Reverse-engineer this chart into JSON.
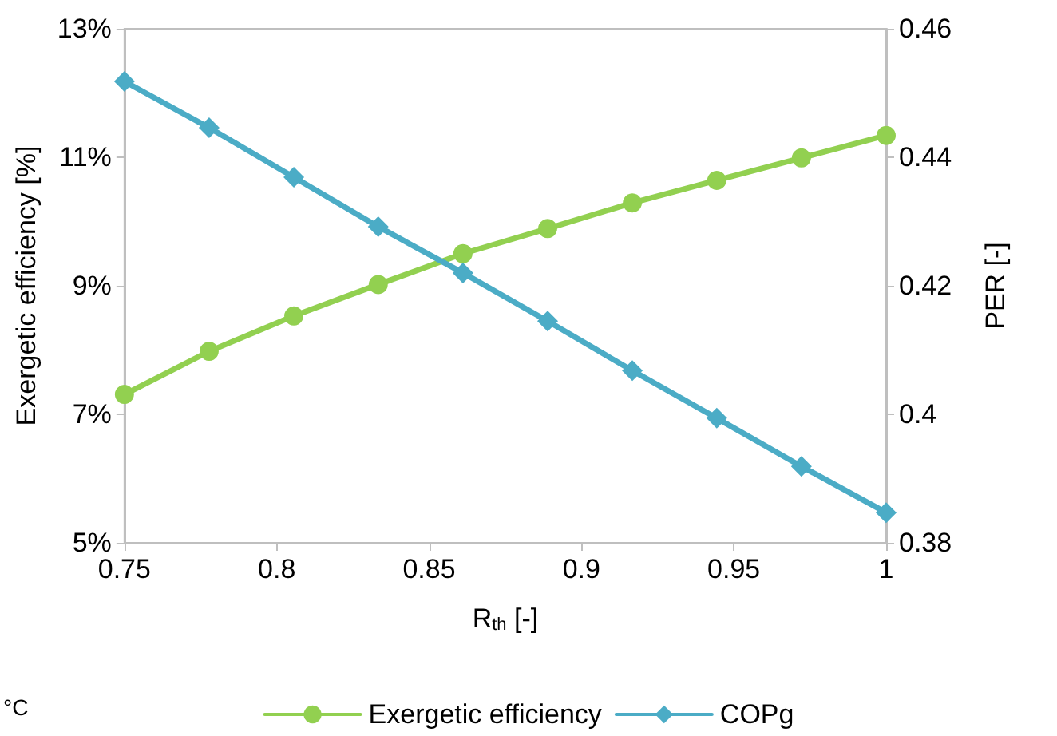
{
  "chart_data": {
    "type": "line",
    "xlabel": "R$_{th}$ [-]",
    "ylabel": "Exergetic efficiency [%]",
    "y2label": "PER [-]",
    "x": [
      0.75,
      0.7778,
      0.8056,
      0.8333,
      0.8611,
      0.8889,
      0.9167,
      0.9444,
      0.9722,
      1
    ],
    "series": [
      {
        "name": "Exergetic efficiency",
        "color": "#92d050",
        "marker": "circle",
        "values": [
          7.31,
          7.98,
          8.53,
          9.02,
          9.5,
          9.89,
          10.29,
          10.64,
          10.99,
          11.34
        ]
      },
      {
        "name": "COPg",
        "color": "#4bacc6",
        "marker": "diamond",
        "axis": "y2",
        "values": [
          0.4518,
          0.4446,
          0.4369,
          0.4292,
          0.422,
          0.4145,
          0.4068,
          0.3994,
          0.3919,
          0.3847
        ]
      }
    ],
    "xlim": [
      0.75,
      1
    ],
    "xticks": [
      0.75,
      0.8,
      0.85,
      0.9,
      0.95,
      1
    ],
    "ylim": [
      5,
      13
    ],
    "yticks": [
      {
        "value": 5,
        "label": "5%"
      },
      {
        "value": 7,
        "label": "7%"
      },
      {
        "value": 9,
        "label": "9%"
      },
      {
        "value": 11,
        "label": "11%"
      },
      {
        "value": 13,
        "label": "13%"
      }
    ],
    "y2lim": [
      0.38,
      0.46
    ],
    "y2ticks": [
      0.38,
      0.4,
      0.42,
      0.44,
      0.46
    ],
    "legend": "bottom",
    "annotations": [
      "°C"
    ]
  }
}
